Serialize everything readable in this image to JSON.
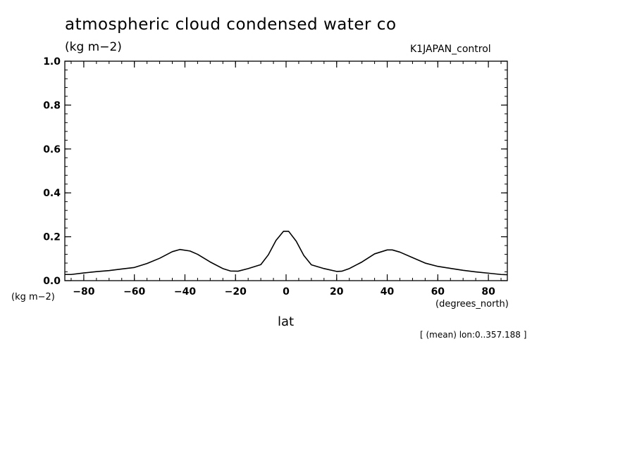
{
  "chart_data": {
    "type": "line",
    "title": "atmospheric cloud condensed water co",
    "units_top": "(kg m−2)",
    "units_bottom": "(kg m−2)",
    "run": "K1JAPAN_control",
    "xlabel": "lat",
    "x_units": "(degrees_north)",
    "footnote": "[ (mean) lon:0..357.188 ]",
    "xlim": [
      -87.5,
      87.5
    ],
    "ylim": [
      0,
      1.0
    ],
    "x_ticks": [
      -80,
      -60,
      -40,
      -20,
      0,
      20,
      40,
      60,
      80
    ],
    "x_tick_labels": [
      "−80",
      "−60",
      "−40",
      "−20",
      "0",
      "20",
      "40",
      "60",
      "80"
    ],
    "y_ticks": [
      0.0,
      0.2,
      0.4,
      0.6,
      0.8,
      1.0
    ],
    "y_tick_labels": [
      "0.0",
      "0.2",
      "0.4",
      "0.6",
      "0.8",
      "1.0"
    ],
    "series": [
      {
        "x": [
          -87.5,
          -85,
          -80,
          -75,
          -70,
          -65,
          -60,
          -55,
          -50,
          -45,
          -42,
          -38,
          -35,
          -30,
          -25,
          -22,
          -19,
          -15,
          -10,
          -7,
          -4,
          -1,
          1,
          4,
          7,
          10,
          15,
          20,
          22,
          25,
          30,
          35,
          40,
          42,
          45,
          50,
          55,
          60,
          65,
          70,
          75,
          80,
          85,
          87.5
        ],
        "y": [
          0.028,
          0.028,
          0.035,
          0.041,
          0.046,
          0.053,
          0.06,
          0.078,
          0.102,
          0.132,
          0.142,
          0.135,
          0.12,
          0.085,
          0.055,
          0.044,
          0.043,
          0.055,
          0.073,
          0.118,
          0.183,
          0.225,
          0.225,
          0.18,
          0.115,
          0.072,
          0.055,
          0.042,
          0.043,
          0.055,
          0.085,
          0.122,
          0.14,
          0.14,
          0.13,
          0.105,
          0.08,
          0.065,
          0.056,
          0.047,
          0.04,
          0.034,
          0.028,
          0.027
        ]
      }
    ]
  }
}
